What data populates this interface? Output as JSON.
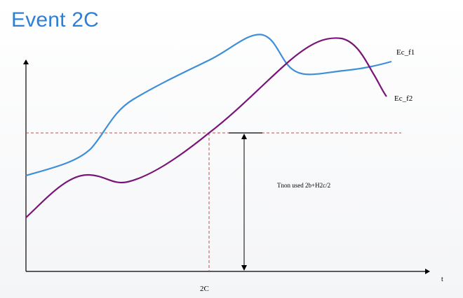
{
  "slide": {
    "title": "Event 2C"
  },
  "diagram": {
    "x_axis_label": "t",
    "event_label": "2C",
    "threshold_label": "Tnon used 2b+H2c/2",
    "series": [
      {
        "name": "Ec_f1",
        "color": "#3f8fd8"
      },
      {
        "name": "Ec_f2",
        "color": "#7a1478"
      }
    ],
    "reference_line_color": "#c0504d"
  }
}
